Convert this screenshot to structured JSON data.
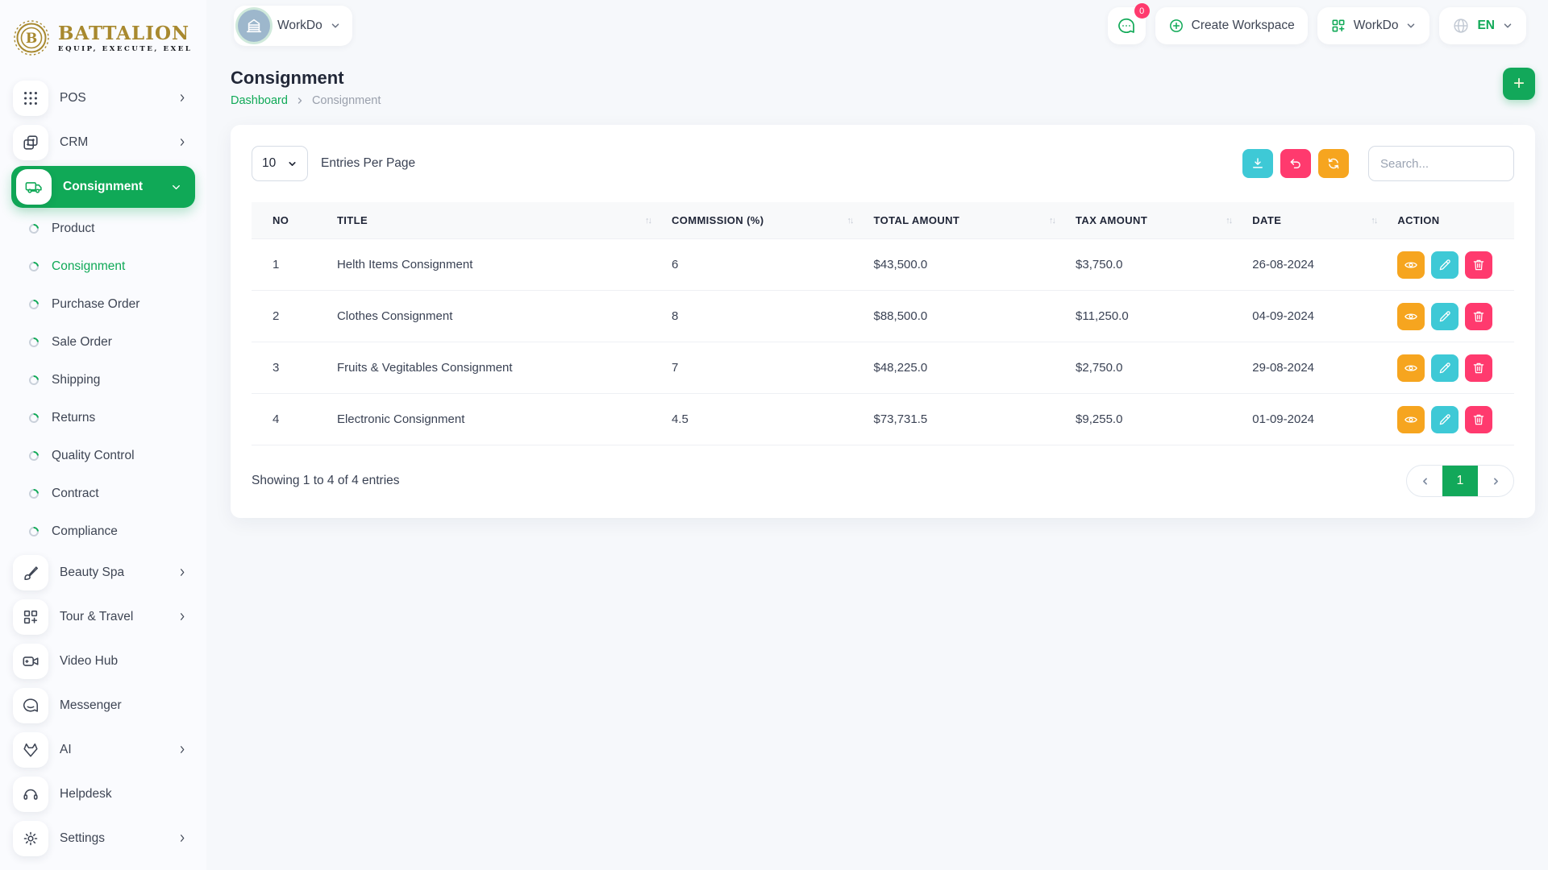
{
  "colors": {
    "accent": "#10a957",
    "teal": "#3ec9d6",
    "pink": "#ff3a6e",
    "orange": "#f6a51f"
  },
  "brand": {
    "name": "BATTALION",
    "tagline": "EQUIP, EXECUTE, EXEL",
    "badge_letter": "B"
  },
  "topbar": {
    "workspace_label": "WorkDo",
    "chat_badge": "0",
    "create_workspace_label": "Create Workspace",
    "app_switcher_label": "WorkDo",
    "language_code": "EN"
  },
  "sidebar": {
    "items": [
      {
        "type": "item",
        "icon": "grid-dots",
        "label": "POS",
        "chevron": "right"
      },
      {
        "type": "item",
        "icon": "crm",
        "label": "CRM",
        "chevron": "right"
      },
      {
        "type": "item",
        "icon": "truck",
        "label": "Consignment",
        "chevron": "down",
        "active": true
      },
      {
        "type": "sub",
        "label": "Product"
      },
      {
        "type": "sub",
        "label": "Consignment",
        "active": true
      },
      {
        "type": "sub",
        "label": "Purchase Order"
      },
      {
        "type": "sub",
        "label": "Sale Order"
      },
      {
        "type": "sub",
        "label": "Shipping"
      },
      {
        "type": "sub",
        "label": "Returns"
      },
      {
        "type": "sub",
        "label": "Quality Control"
      },
      {
        "type": "sub",
        "label": "Contract"
      },
      {
        "type": "sub",
        "label": "Compliance"
      },
      {
        "type": "item",
        "icon": "brush",
        "label": "Beauty Spa",
        "chevron": "right"
      },
      {
        "type": "item",
        "icon": "grid-plus",
        "label": "Tour & Travel",
        "chevron": "right"
      },
      {
        "type": "item",
        "icon": "video",
        "label": "Video Hub"
      },
      {
        "type": "item",
        "icon": "chat",
        "label": "Messenger"
      },
      {
        "type": "item",
        "icon": "ai",
        "label": "AI",
        "chevron": "right"
      },
      {
        "type": "item",
        "icon": "headset",
        "label": "Helpdesk"
      },
      {
        "type": "item",
        "icon": "gear",
        "label": "Settings",
        "chevron": "right"
      }
    ]
  },
  "page": {
    "title": "Consignment",
    "breadcrumb": {
      "root": "Dashboard",
      "current": "Consignment"
    },
    "add_button_label": "+"
  },
  "toolbar": {
    "entries_value": "10",
    "entries_label": "Entries Per Page",
    "search_placeholder": "Search..."
  },
  "table": {
    "columns": [
      {
        "label": "NO",
        "sortable": false
      },
      {
        "label": "TITLE",
        "sortable": true
      },
      {
        "label": "COMMISSION (%)",
        "sortable": true
      },
      {
        "label": "TOTAL AMOUNT",
        "sortable": true
      },
      {
        "label": "TAX AMOUNT",
        "sortable": true
      },
      {
        "label": "DATE",
        "sortable": true
      },
      {
        "label": "ACTION",
        "sortable": false
      }
    ],
    "rows": [
      {
        "no": "1",
        "title": "Helth Items Consignment",
        "commission": "6",
        "total": "$43,500.0",
        "tax": "$3,750.0",
        "date": "26-08-2024"
      },
      {
        "no": "2",
        "title": "Clothes Consignment",
        "commission": "8",
        "total": "$88,500.0",
        "tax": "$11,250.0",
        "date": "04-09-2024"
      },
      {
        "no": "3",
        "title": "Fruits & Vegitables Consignment",
        "commission": "7",
        "total": "$48,225.0",
        "tax": "$2,750.0",
        "date": "29-08-2024"
      },
      {
        "no": "4",
        "title": "Electronic Consignment",
        "commission": "4.5",
        "total": "$73,731.5",
        "tax": "$9,255.0",
        "date": "01-09-2024"
      }
    ]
  },
  "footer": {
    "summary": "Showing 1 to 4 of 4 entries",
    "page": "1"
  }
}
